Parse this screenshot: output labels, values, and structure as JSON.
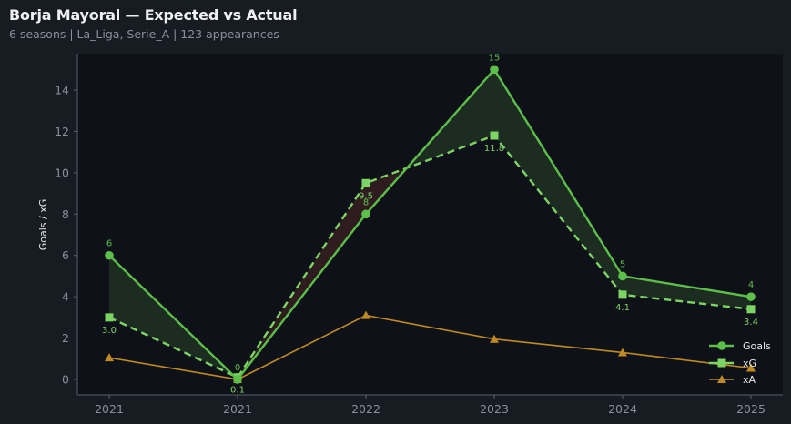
{
  "header": {
    "title": "Borja Mayoral — Expected vs Actual",
    "subtitle": "6 seasons | La_Liga, Serie_A | 123 appearances"
  },
  "colors": {
    "background": "#171b22",
    "plot_background": "#0e1118",
    "goals": "#5cbf4a",
    "xg": "#7dd464",
    "xa": "#c08a22",
    "overperform_fill": "#1c2c20",
    "underperform_fill": "#2e1c1e",
    "axis": "#5b606a",
    "tick_text": "#8a8f99"
  },
  "chart_data": {
    "type": "line",
    "title": "Borja Mayoral — Expected vs Actual",
    "subtitle": "6 seasons | La_Liga, Serie_A | 123 appearances",
    "xlabel": "",
    "ylabel": "Goals / xG",
    "categories": [
      "2021",
      "2021",
      "2022",
      "2023",
      "2024",
      "2025"
    ],
    "ylim": [
      -0.8,
      15.5
    ],
    "yticks": [
      0,
      2,
      4,
      6,
      8,
      10,
      12,
      14
    ],
    "grid": false,
    "legend_position": "lower right",
    "series": [
      {
        "name": "Goals",
        "values": [
          6,
          0,
          8,
          15,
          5,
          4
        ],
        "style": "solid",
        "marker": "circle",
        "labels": [
          "6",
          "0",
          "8",
          "15",
          "5",
          "4"
        ]
      },
      {
        "name": "xG",
        "values": [
          3.0,
          0.1,
          9.5,
          11.8,
          4.1,
          3.4
        ],
        "style": "dashed",
        "marker": "square",
        "labels": [
          "3.0",
          "0.1",
          "9.5",
          "11.8",
          "4.1",
          "3.4"
        ]
      },
      {
        "name": "xA",
        "values": [
          1.05,
          0.0,
          3.1,
          1.95,
          1.3,
          0.55
        ],
        "style": "solid",
        "marker": "triangle"
      }
    ],
    "annotations": "Shaded green where Goals > xG, shaded red where Goals < xG"
  },
  "legend": {
    "items": [
      {
        "label": "Goals"
      },
      {
        "label": "xG"
      },
      {
        "label": "xA"
      }
    ]
  }
}
